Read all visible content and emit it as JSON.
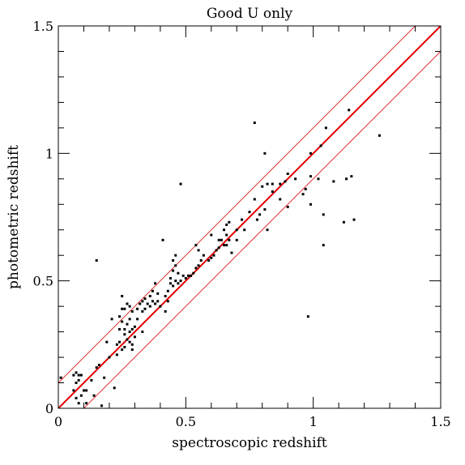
{
  "chart_data": {
    "type": "scatter",
    "title": "Good U only",
    "xlabel": "spectroscopic redshift",
    "ylabel": "photometric redshift",
    "xlim": [
      0,
      1.5
    ],
    "ylim": [
      0,
      1.5
    ],
    "x_ticks": [
      0,
      0.5,
      1,
      1.5
    ],
    "y_ticks": [
      0,
      0.5,
      1,
      1.5
    ],
    "x_tick_labels": [
      "0",
      "0.5",
      "1",
      "1.5"
    ],
    "y_tick_labels": [
      "0",
      "0.5",
      "1",
      "1.5"
    ],
    "x_minor_step": 0.1,
    "y_minor_step": 0.1,
    "grid": false,
    "colors": {
      "points": "#000000",
      "lines": "#dd0000"
    },
    "lines": [
      {
        "role": "one-to-one",
        "x": [
          0,
          1.5
        ],
        "y": [
          0,
          1.5
        ]
      },
      {
        "role": "upper-envelope",
        "x": [
          0,
          1.5
        ],
        "y": [
          0.1,
          1.6
        ]
      },
      {
        "role": "lower-envelope",
        "x": [
          0,
          1.5
        ],
        "y": [
          -0.1,
          1.4
        ]
      }
    ],
    "points": [
      [
        0.01,
        0.12
      ],
      [
        0.06,
        0.13
      ],
      [
        0.06,
        0.07
      ],
      [
        0.07,
        0.1
      ],
      [
        0.07,
        0.14
      ],
      [
        0.07,
        0.04
      ],
      [
        0.08,
        0.13
      ],
      [
        0.08,
        0.11
      ],
      [
        0.08,
        0.02
      ],
      [
        0.09,
        0.05
      ],
      [
        0.09,
        0.13
      ],
      [
        0.1,
        0.07
      ],
      [
        0.11,
        0.07
      ],
      [
        0.11,
        0.02
      ],
      [
        0.13,
        0.11
      ],
      [
        0.14,
        0.05
      ],
      [
        0.15,
        0.16
      ],
      [
        0.16,
        0.17
      ],
      [
        0.18,
        0.12
      ],
      [
        0.17,
        0.01
      ],
      [
        0.15,
        0.58
      ],
      [
        0.19,
        0.26
      ],
      [
        0.2,
        0.2
      ],
      [
        0.21,
        0.35
      ],
      [
        0.22,
        0.08
      ],
      [
        0.23,
        0.25
      ],
      [
        0.23,
        0.21
      ],
      [
        0.24,
        0.36
      ],
      [
        0.24,
        0.31
      ],
      [
        0.24,
        0.26
      ],
      [
        0.25,
        0.44
      ],
      [
        0.25,
        0.39
      ],
      [
        0.25,
        0.34
      ],
      [
        0.25,
        0.23
      ],
      [
        0.26,
        0.39
      ],
      [
        0.26,
        0.31
      ],
      [
        0.26,
        0.29
      ],
      [
        0.26,
        0.24
      ],
      [
        0.27,
        0.41
      ],
      [
        0.27,
        0.33
      ],
      [
        0.27,
        0.27
      ],
      [
        0.28,
        0.4
      ],
      [
        0.28,
        0.35
      ],
      [
        0.28,
        0.3
      ],
      [
        0.28,
        0.26
      ],
      [
        0.29,
        0.38
      ],
      [
        0.29,
        0.31
      ],
      [
        0.29,
        0.25
      ],
      [
        0.29,
        0.23
      ],
      [
        0.3,
        0.32
      ],
      [
        0.3,
        0.28
      ],
      [
        0.31,
        0.39
      ],
      [
        0.31,
        0.35
      ],
      [
        0.32,
        0.41
      ],
      [
        0.33,
        0.42
      ],
      [
        0.33,
        0.38
      ],
      [
        0.33,
        0.3
      ],
      [
        0.34,
        0.43
      ],
      [
        0.34,
        0.39
      ],
      [
        0.35,
        0.41
      ],
      [
        0.36,
        0.44
      ],
      [
        0.36,
        0.4
      ],
      [
        0.37,
        0.42
      ],
      [
        0.37,
        0.46
      ],
      [
        0.38,
        0.41
      ],
      [
        0.38,
        0.49
      ],
      [
        0.39,
        0.45
      ],
      [
        0.39,
        0.42
      ],
      [
        0.4,
        0.4
      ],
      [
        0.41,
        0.66
      ],
      [
        0.42,
        0.38
      ],
      [
        0.42,
        0.44
      ],
      [
        0.43,
        0.42
      ],
      [
        0.43,
        0.46
      ],
      [
        0.44,
        0.49
      ],
      [
        0.44,
        0.51
      ],
      [
        0.45,
        0.48
      ],
      [
        0.45,
        0.54
      ],
      [
        0.45,
        0.58
      ],
      [
        0.46,
        0.6
      ],
      [
        0.46,
        0.5
      ],
      [
        0.46,
        0.56
      ],
      [
        0.47,
        0.53
      ],
      [
        0.47,
        0.49
      ],
      [
        0.48,
        0.88
      ],
      [
        0.48,
        0.5
      ],
      [
        0.49,
        0.52
      ],
      [
        0.5,
        0.51
      ],
      [
        0.51,
        0.52
      ],
      [
        0.52,
        0.52
      ],
      [
        0.53,
        0.53
      ],
      [
        0.54,
        0.55
      ],
      [
        0.54,
        0.64
      ],
      [
        0.55,
        0.56
      ],
      [
        0.55,
        0.62
      ],
      [
        0.56,
        0.58
      ],
      [
        0.57,
        0.6
      ],
      [
        0.59,
        0.58
      ],
      [
        0.6,
        0.59
      ],
      [
        0.6,
        0.68
      ],
      [
        0.61,
        0.6
      ],
      [
        0.62,
        0.62
      ],
      [
        0.63,
        0.66
      ],
      [
        0.63,
        0.63
      ],
      [
        0.64,
        0.66
      ],
      [
        0.65,
        0.7
      ],
      [
        0.65,
        0.64
      ],
      [
        0.66,
        0.72
      ],
      [
        0.66,
        0.68
      ],
      [
        0.66,
        0.64
      ],
      [
        0.67,
        0.73
      ],
      [
        0.67,
        0.66
      ],
      [
        0.68,
        0.61
      ],
      [
        0.7,
        0.66
      ],
      [
        0.7,
        0.7
      ],
      [
        0.72,
        0.74
      ],
      [
        0.73,
        0.7
      ],
      [
        0.75,
        0.77
      ],
      [
        0.77,
        0.82
      ],
      [
        0.77,
        1.12
      ],
      [
        0.78,
        0.74
      ],
      [
        0.79,
        0.76
      ],
      [
        0.8,
        0.87
      ],
      [
        0.81,
        0.78
      ],
      [
        0.81,
        1.0
      ],
      [
        0.82,
        0.88
      ],
      [
        0.82,
        0.7
      ],
      [
        0.84,
        0.85
      ],
      [
        0.84,
        0.88
      ],
      [
        0.87,
        0.88
      ],
      [
        0.87,
        0.82
      ],
      [
        0.89,
        0.89
      ],
      [
        0.9,
        0.79
      ],
      [
        0.9,
        0.92
      ],
      [
        0.93,
        0.9
      ],
      [
        0.96,
        0.84
      ],
      [
        0.97,
        0.86
      ],
      [
        0.98,
        0.36
      ],
      [
        0.99,
        0.8
      ],
      [
        0.99,
        0.91
      ],
      [
        0.99,
        1.0
      ],
      [
        1.02,
        0.9
      ],
      [
        1.03,
        1.03
      ],
      [
        1.04,
        0.76
      ],
      [
        1.04,
        0.64
      ],
      [
        1.05,
        1.1
      ],
      [
        1.08,
        0.89
      ],
      [
        1.12,
        0.73
      ],
      [
        1.13,
        0.9
      ],
      [
        1.14,
        1.17
      ],
      [
        1.15,
        0.91
      ],
      [
        1.16,
        0.74
      ],
      [
        1.26,
        1.07
      ]
    ]
  }
}
